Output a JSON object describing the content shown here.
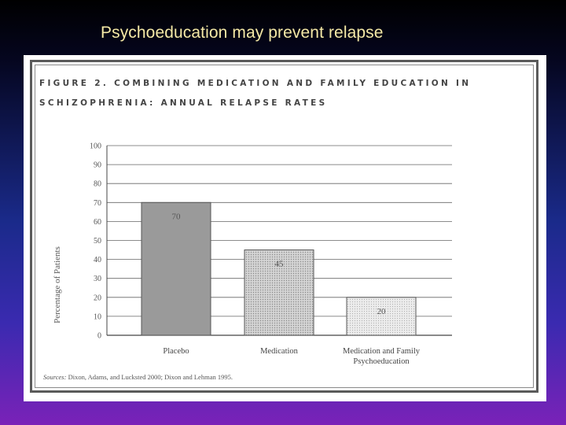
{
  "slide": {
    "title": "Psychoeducation may prevent relapse"
  },
  "figure": {
    "title_line1": "FIGURE 2. COMBINING MEDICATION AND FAMILY EDUCATION IN",
    "title_line2": "SCHIZOPHRENIA: ANNUAL RELAPSE RATES",
    "source_label": "Sources:",
    "source_text": "Dixon, Adams, and Lucksted 2000; Dixon and Lehman 1995."
  },
  "chart_data": {
    "type": "bar",
    "categories": [
      "Placebo",
      "Medication",
      "Medication and Family Psychoeducation"
    ],
    "category_lines": [
      [
        "Placebo"
      ],
      [
        "Medication"
      ],
      [
        "Medication and Family",
        "Psychoeducation"
      ]
    ],
    "values": [
      70,
      45,
      20
    ],
    "value_labels": [
      "70",
      "45",
      "20"
    ],
    "ylabel": "Percentage of Patients",
    "ylim": [
      0,
      100
    ],
    "yticks": [
      0,
      10,
      20,
      30,
      40,
      50,
      60,
      70,
      80,
      90,
      100
    ],
    "grid": true,
    "bar_colors": [
      "#9a9a9a",
      "#c8c8c8",
      "#e2e2e2"
    ],
    "bar_styles": [
      "solid",
      "dotted",
      "light-dotted"
    ]
  }
}
